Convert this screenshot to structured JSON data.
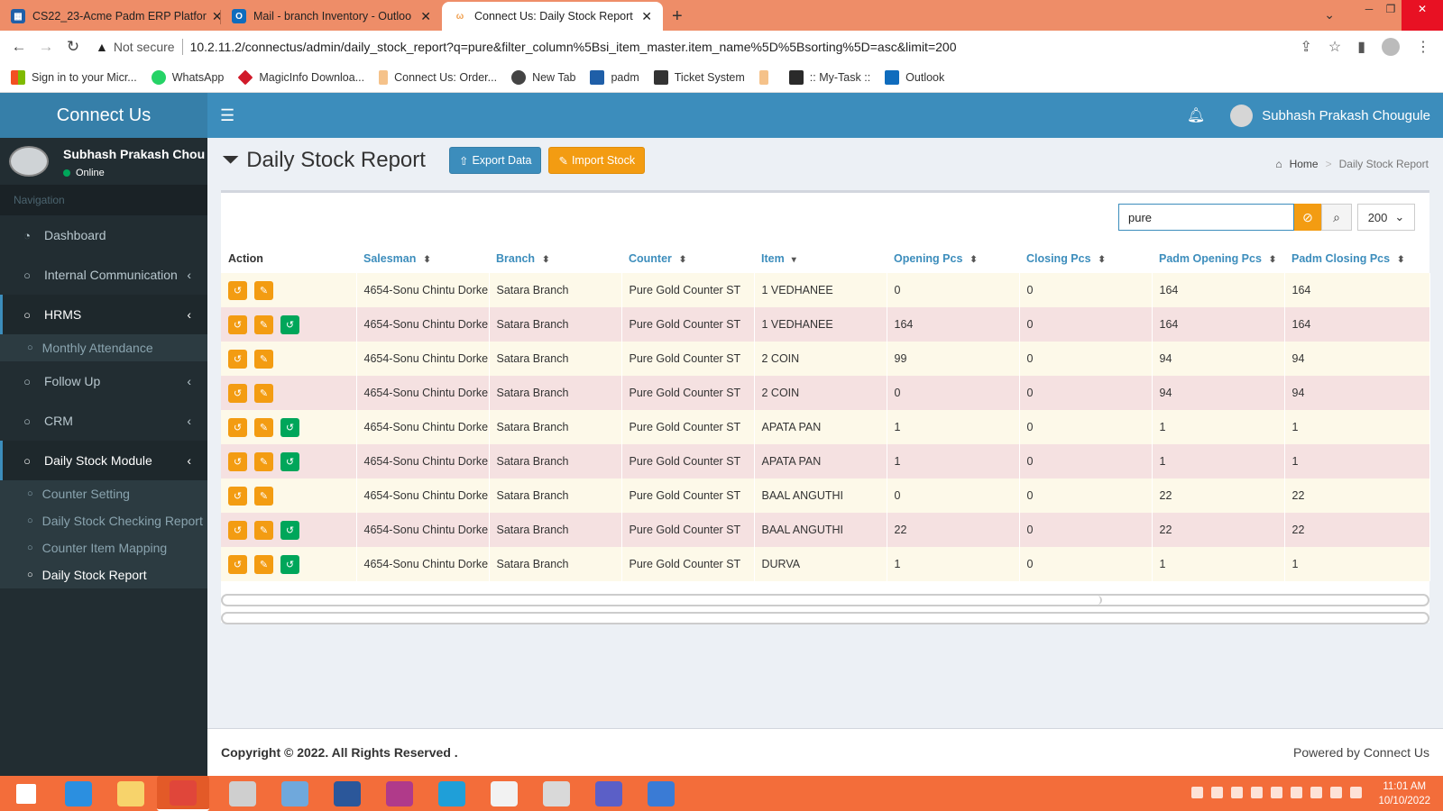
{
  "browser": {
    "tabs": [
      {
        "title": "CS22_23-Acme Padm ERP Platfor",
        "icon": "erp-icon",
        "color": "#1f5fa8"
      },
      {
        "title": "Mail - branch Inventory - Outloo",
        "icon": "outlook-icon",
        "color": "#0f6cbd"
      },
      {
        "title": "Connect Us: Daily Stock Report",
        "icon": "connectus-icon",
        "color": "#f0a050"
      }
    ],
    "security": "Not secure",
    "url": "10.2.11.2/connectus/admin/daily_stock_report?q=pure&filter_column%5Bsi_item_master.item_name%5D%5Bsorting%5D=asc&limit=200",
    "bookmarks": [
      {
        "label": "Sign in to your Micr...",
        "color": "#f25022"
      },
      {
        "label": "WhatsApp",
        "color": "#25d366"
      },
      {
        "label": "MagicInfo Downloa...",
        "color": "#d11a2a"
      },
      {
        "label": "Connect Us: Order...",
        "color": "#f5c28a"
      },
      {
        "label": "New Tab",
        "color": "#444444"
      },
      {
        "label": "padm",
        "color": "#1f5fa8"
      },
      {
        "label": "Ticket System",
        "color": "#333333"
      },
      {
        "label": "",
        "color": "#f5c28a"
      },
      {
        "label": ":: My-Task ::",
        "color": "#2a2a2a"
      },
      {
        "label": "Outlook",
        "color": "#0f6cbd"
      }
    ]
  },
  "app": {
    "brand": "Connect Us",
    "user_name": "Subhash Prakash Chougule",
    "user_name_truncated": "Subhash Prakash Chou",
    "status": "Online",
    "nav_header": "Navigation"
  },
  "sidebar": {
    "items": [
      {
        "label": "Dashboard",
        "icon": "dashboard-icon",
        "chev": ""
      },
      {
        "label": "Internal Communication",
        "icon": "circle-icon",
        "chev": "‹"
      },
      {
        "label": "HRMS",
        "icon": "circle-icon",
        "chev": "‹"
      },
      {
        "label": "Follow Up",
        "icon": "circle-icon",
        "chev": "‹"
      },
      {
        "label": "CRM",
        "icon": "circle-icon",
        "chev": "‹"
      },
      {
        "label": "Daily Stock Module",
        "icon": "circle-icon",
        "chev": "‹"
      }
    ],
    "hrms_sub": [
      "Monthly Attendance"
    ],
    "stock_sub": [
      "Counter Setting",
      "Daily Stock Checking Report",
      "Counter Item Mapping",
      "Daily Stock Report"
    ]
  },
  "page": {
    "title": "Daily Stock Report",
    "export_label": "Export Data",
    "import_label": "Import Stock",
    "breadcrumb_home": "Home",
    "breadcrumb_current": "Daily Stock Report",
    "search_value": "pure",
    "limit": "200"
  },
  "table": {
    "columns": [
      "Action",
      "Salesman",
      "Branch",
      "Counter",
      "Item",
      "Opening Pcs",
      "Closing Pcs",
      "Padm Opening Pcs",
      "Padm Closing Pcs"
    ],
    "rows": [
      {
        "salesman": "4654-Sonu Chintu Dorke",
        "branch": "Satara Branch",
        "counter": "Pure Gold Counter ST",
        "item": "1 VEDHANEE",
        "opening": "0",
        "closing": "0",
        "padm_opening": "164",
        "padm_closing": "164",
        "green": false
      },
      {
        "salesman": "4654-Sonu Chintu Dorke",
        "branch": "Satara Branch",
        "counter": "Pure Gold Counter ST",
        "item": "1 VEDHANEE",
        "opening": "164",
        "closing": "0",
        "padm_opening": "164",
        "padm_closing": "164",
        "green": true
      },
      {
        "salesman": "4654-Sonu Chintu Dorke",
        "branch": "Satara Branch",
        "counter": "Pure Gold Counter ST",
        "item": "2 COIN",
        "opening": "99",
        "closing": "0",
        "padm_opening": "94",
        "padm_closing": "94",
        "green": false
      },
      {
        "salesman": "4654-Sonu Chintu Dorke",
        "branch": "Satara Branch",
        "counter": "Pure Gold Counter ST",
        "item": "2 COIN",
        "opening": "0",
        "closing": "0",
        "padm_opening": "94",
        "padm_closing": "94",
        "green": false
      },
      {
        "salesman": "4654-Sonu Chintu Dorke",
        "branch": "Satara Branch",
        "counter": "Pure Gold Counter ST",
        "item": "APATA PAN",
        "opening": "1",
        "closing": "0",
        "padm_opening": "1",
        "padm_closing": "1",
        "green": true
      },
      {
        "salesman": "4654-Sonu Chintu Dorke",
        "branch": "Satara Branch",
        "counter": "Pure Gold Counter ST",
        "item": "APATA PAN",
        "opening": "1",
        "closing": "0",
        "padm_opening": "1",
        "padm_closing": "1",
        "green": true
      },
      {
        "salesman": "4654-Sonu Chintu Dorke",
        "branch": "Satara Branch",
        "counter": "Pure Gold Counter ST",
        "item": "BAAL ANGUTHI",
        "opening": "0",
        "closing": "0",
        "padm_opening": "22",
        "padm_closing": "22",
        "green": false
      },
      {
        "salesman": "4654-Sonu Chintu Dorke",
        "branch": "Satara Branch",
        "counter": "Pure Gold Counter ST",
        "item": "BAAL ANGUTHI",
        "opening": "22",
        "closing": "0",
        "padm_opening": "22",
        "padm_closing": "22",
        "green": true
      },
      {
        "salesman": "4654-Sonu Chintu Dorke",
        "branch": "Satara Branch",
        "counter": "Pure Gold Counter ST",
        "item": "DURVA",
        "opening": "1",
        "closing": "0",
        "padm_opening": "1",
        "padm_closing": "1",
        "green": true
      }
    ]
  },
  "footer": {
    "copyright": "Copyright © 2022. All Rights Reserved .",
    "powered": "Powered by Connect Us"
  },
  "taskbar": {
    "time": "11:01 AM",
    "date": "10/10/2022",
    "apps": [
      {
        "name": "windows-start-icon",
        "color": "#ffffff"
      },
      {
        "name": "ie-icon",
        "color": "#2b8fe0"
      },
      {
        "name": "file-explorer-icon",
        "color": "#f7d36b"
      },
      {
        "name": "chrome-icon",
        "color": "#e0463a"
      },
      {
        "name": "printer-icon",
        "color": "#cfcfcf"
      },
      {
        "name": "control-panel-icon",
        "color": "#6fa8dc"
      },
      {
        "name": "word-icon",
        "color": "#2b579a"
      },
      {
        "name": "camera-app-icon",
        "color": "#b03a8a"
      },
      {
        "name": "edge-icon",
        "color": "#1f9fd8"
      },
      {
        "name": "vnc-icon",
        "color": "#f2f2f2"
      },
      {
        "name": "snipping-tool-icon",
        "color": "#d9d9d9"
      },
      {
        "name": "teams-icon",
        "color": "#5b5fc7"
      },
      {
        "name": "remote-desktop-icon",
        "color": "#3a7bd5"
      }
    ]
  }
}
